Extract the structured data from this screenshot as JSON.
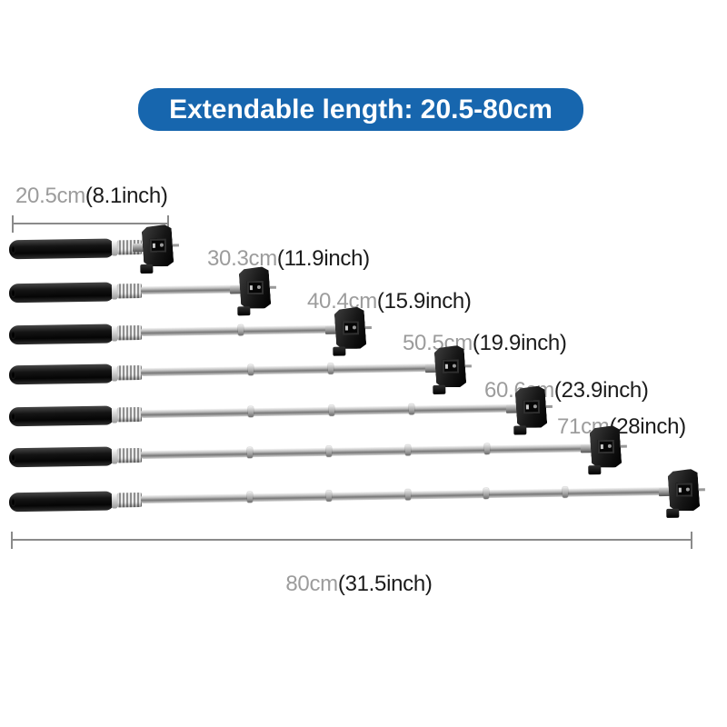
{
  "banner": {
    "text": "Extendable length: 20.5-80cm",
    "bg_color": "#1766ae",
    "text_color": "#ffffff"
  },
  "extension_stages": [
    {
      "cm_label": "20.5cm",
      "inch_label": "(8.1inch)",
      "cm": 20.5,
      "inch": 8.1
    },
    {
      "cm_label": "30.3cm",
      "inch_label": "(11.9inch)",
      "cm": 30.3,
      "inch": 11.9
    },
    {
      "cm_label": "40.4cm",
      "inch_label": "(15.9inch)",
      "cm": 40.4,
      "inch": 15.9
    },
    {
      "cm_label": "50.5cm",
      "inch_label": "(19.9inch)",
      "cm": 50.5,
      "inch": 19.9
    },
    {
      "cm_label": "60.6cm",
      "inch_label": "(23.9inch)",
      "cm": 60.6,
      "inch": 23.9
    },
    {
      "cm_label": "71cm",
      "inch_label": "(28inch)",
      "cm": 71,
      "inch": 28
    },
    {
      "cm_label": "80cm",
      "inch_label": "(31.5inch)",
      "cm": 80,
      "inch": 31.5
    }
  ],
  "measurements": {
    "min_cm": 20.5,
    "max_cm": 80
  },
  "colors": {
    "banner_blue": "#1766ae",
    "label_gray": "#9c9c9c",
    "label_black": "#1b1b1b",
    "bracket_gray": "#8a8a8a",
    "handle_black": "#141414"
  }
}
